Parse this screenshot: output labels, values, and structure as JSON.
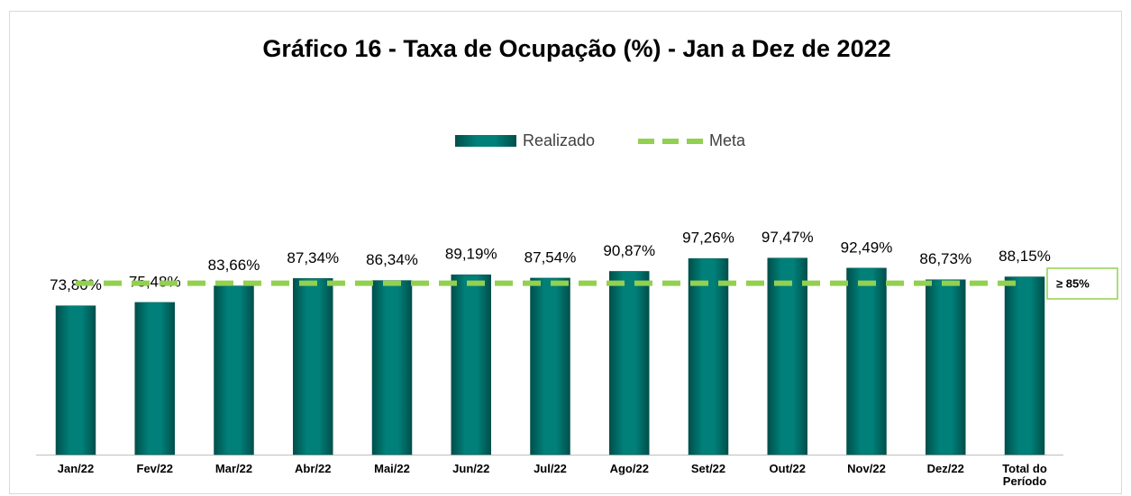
{
  "chart_data": {
    "type": "bar",
    "title": "Gráfico 16 - Taxa de Ocupação (%) - Jan a Dez de 2022",
    "categories": [
      "Jan/22",
      "Fev/22",
      "Mar/22",
      "Abr/22",
      "Mai/22",
      "Jun/22",
      "Jul/22",
      "Ago/22",
      "Set/22",
      "Out/22",
      "Nov/22",
      "Dez/22",
      "Total do Período"
    ],
    "series": [
      {
        "name": "Realizado",
        "color": "#007a73",
        "type": "bar",
        "values": [
          73.8,
          75.48,
          83.66,
          87.34,
          86.34,
          89.19,
          87.54,
          90.87,
          97.26,
          97.47,
          92.49,
          86.73,
          88.15
        ],
        "value_labels": [
          "73,80%",
          "75,48%",
          "83,66%",
          "87,34%",
          "86,34%",
          "89,19%",
          "87,54%",
          "90,87%",
          "97,26%",
          "97,47%",
          "92,49%",
          "86,73%",
          "88,15%"
        ]
      },
      {
        "name": "Meta",
        "color": "#92d050",
        "type": "line",
        "values": [
          85,
          85,
          85,
          85,
          85,
          85,
          85,
          85,
          85,
          85,
          85,
          85,
          85
        ]
      }
    ],
    "annotation": "≥ 85%",
    "ylim": [
      0,
      100
    ]
  }
}
